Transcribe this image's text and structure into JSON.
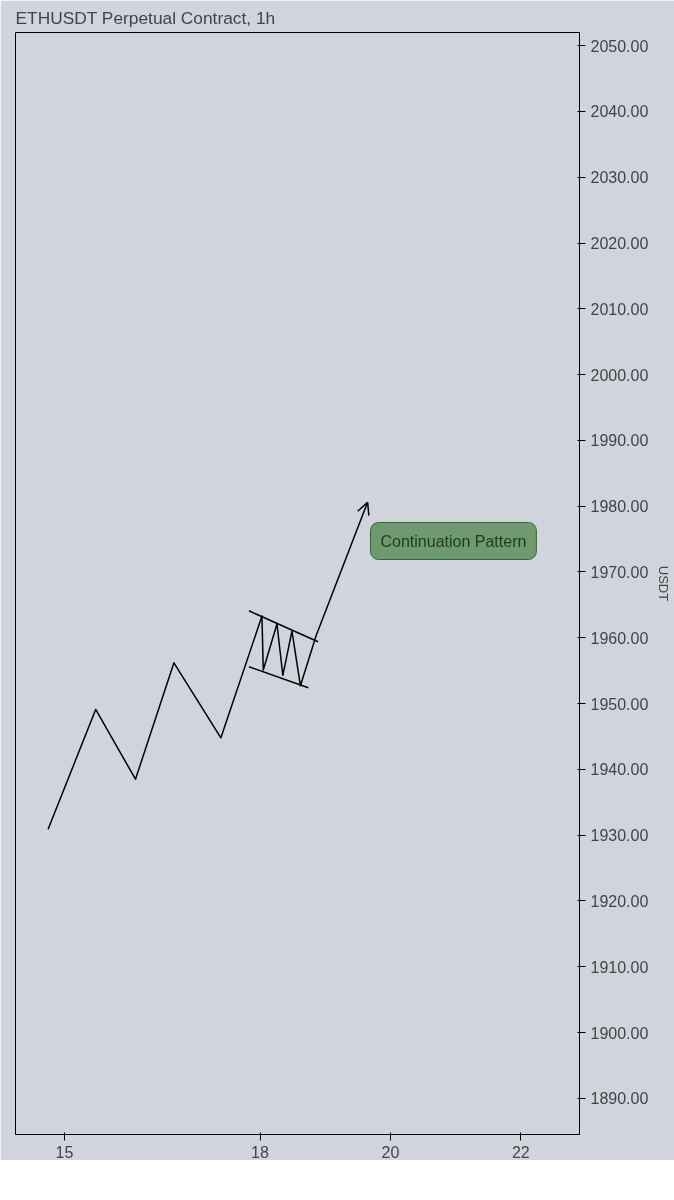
{
  "chart_data": {
    "type": "line",
    "title": "ETHUSDT Perpetual Contract, 1h",
    "ylabel": "USDT",
    "xlim": [
      14.25,
      22.9
    ],
    "xticks": [
      15,
      18,
      20,
      22
    ],
    "ylim": [
      1884.5,
      2052
    ],
    "yticks": [
      {
        "value": 1890,
        "label": "1890.00"
      },
      {
        "value": 1900,
        "label": "1900.00"
      },
      {
        "value": 1910,
        "label": "1910.00"
      },
      {
        "value": 1920,
        "label": "1920.00"
      },
      {
        "value": 1930,
        "label": "1930.00"
      },
      {
        "value": 1940,
        "label": "1940.00"
      },
      {
        "value": 1950,
        "label": "1950.00"
      },
      {
        "value": 1960,
        "label": "1960.00"
      },
      {
        "value": 1970,
        "label": "1970.00"
      },
      {
        "value": 1980,
        "label": "1980.00"
      },
      {
        "value": 1990,
        "label": "1990.00"
      },
      {
        "value": 2000,
        "label": "2000.00"
      },
      {
        "value": 2010,
        "label": "2010.00"
      },
      {
        "value": 2020,
        "label": "2020.00"
      },
      {
        "value": 2030,
        "label": "2030.00"
      },
      {
        "value": 2040,
        "label": "2040.00"
      },
      {
        "value": 2050,
        "label": "2050.00"
      }
    ],
    "grid": false,
    "marker": "none",
    "line_style": "solid",
    "series": [
      {
        "color": "#000000",
        "x": [
          14.75,
          15.48,
          16.09,
          16.68,
          17.4,
          18.03,
          18.05,
          18.26,
          18.35,
          18.49,
          18.62,
          18.86,
          19.65
        ],
        "values": [
          1930.9,
          1949.1,
          1938.5,
          1956.2,
          1944.8,
          1963.3,
          1955.1,
          1962.1,
          1954.3,
          1961.0,
          1952.7,
          1960.3,
          1980.6
        ]
      },
      {
        "color": "#000000",
        "x": [
          17.83,
          18.89
        ],
        "values": [
          1964.1,
          1959.4
        ]
      },
      {
        "color": "#000000",
        "x": [
          17.83,
          18.74
        ],
        "values": [
          1955.6,
          1952.4
        ]
      }
    ],
    "annotations": [
      "Continuation Pattern"
    ]
  }
}
